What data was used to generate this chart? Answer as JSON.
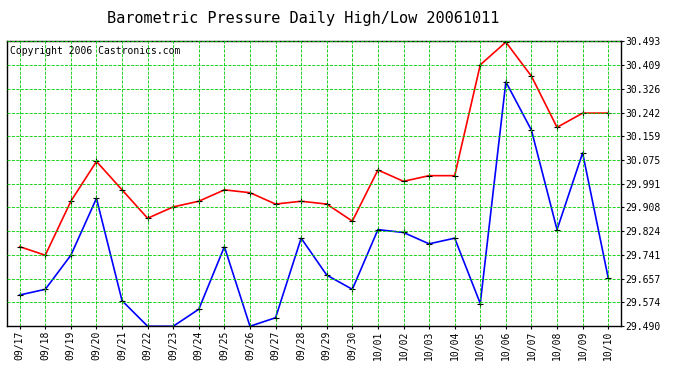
{
  "title": "Barometric Pressure Daily High/Low 20061011",
  "copyright": "Copyright 2006 Castronics.com",
  "dates": [
    "09/17",
    "09/18",
    "09/19",
    "09/20",
    "09/21",
    "09/22",
    "09/23",
    "09/24",
    "09/25",
    "09/26",
    "09/27",
    "09/28",
    "09/29",
    "09/30",
    "10/01",
    "10/02",
    "10/03",
    "10/04",
    "10/05",
    "10/06",
    "10/07",
    "10/08",
    "10/09",
    "10/10"
  ],
  "high": [
    29.77,
    29.74,
    29.93,
    30.07,
    29.97,
    29.87,
    29.91,
    29.93,
    29.97,
    29.96,
    29.92,
    29.93,
    29.92,
    29.86,
    30.04,
    30.0,
    30.02,
    30.02,
    30.41,
    30.49,
    30.37,
    30.19,
    30.24,
    30.24
  ],
  "low": [
    29.6,
    29.62,
    29.74,
    29.94,
    29.58,
    29.49,
    29.49,
    29.55,
    29.77,
    29.49,
    29.52,
    29.8,
    29.67,
    29.62,
    29.83,
    29.82,
    29.78,
    29.8,
    29.57,
    30.35,
    30.18,
    29.83,
    30.1,
    29.66
  ],
  "ylim_min": 29.49,
  "ylim_max": 30.493,
  "yticks": [
    29.49,
    29.574,
    29.657,
    29.741,
    29.824,
    29.908,
    29.991,
    30.075,
    30.159,
    30.242,
    30.326,
    30.409,
    30.493
  ],
  "high_color": "#ff0000",
  "low_color": "#0000ff",
  "grid_color": "#00cc00",
  "bg_color": "#ffffff",
  "plot_bg_color": "#ffffff",
  "title_fontsize": 11,
  "tick_fontsize": 7,
  "copyright_fontsize": 7
}
